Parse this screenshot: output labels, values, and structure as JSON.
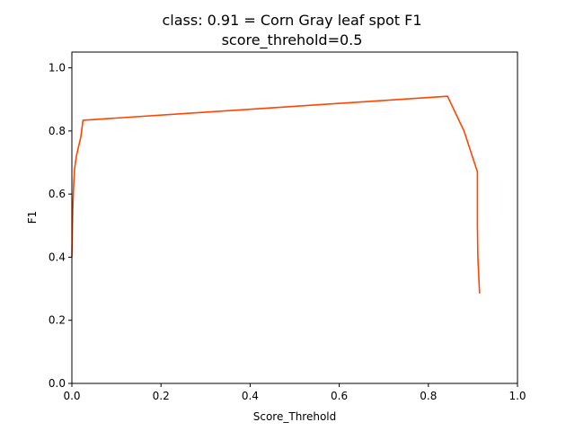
{
  "chart_data": {
    "type": "line",
    "title": "class: 0.91 = Corn Gray leaf spot F1",
    "subtitle": "score_threhold=0.5",
    "xlabel": "Score_Threhold",
    "ylabel": "F1",
    "xlim": [
      0.0,
      1.0
    ],
    "ylim": [
      0.0,
      1.05
    ],
    "xticks": [
      "0.0",
      "0.2",
      "0.4",
      "0.6",
      "0.8",
      "1.0"
    ],
    "yticks": [
      "0.0",
      "0.2",
      "0.4",
      "0.6",
      "0.8",
      "1.0"
    ],
    "grid": false,
    "color": "#ff4500",
    "series": [
      {
        "x": [
          0.0,
          0.002,
          0.004,
          0.006,
          0.01,
          0.015,
          0.02,
          0.025,
          0.843,
          0.88,
          0.91,
          0.91,
          0.911,
          0.915
        ],
        "y": [
          0.4,
          0.55,
          0.63,
          0.68,
          0.72,
          0.75,
          0.78,
          0.834,
          0.91,
          0.8,
          0.67,
          0.5,
          0.4,
          0.285
        ]
      }
    ]
  }
}
